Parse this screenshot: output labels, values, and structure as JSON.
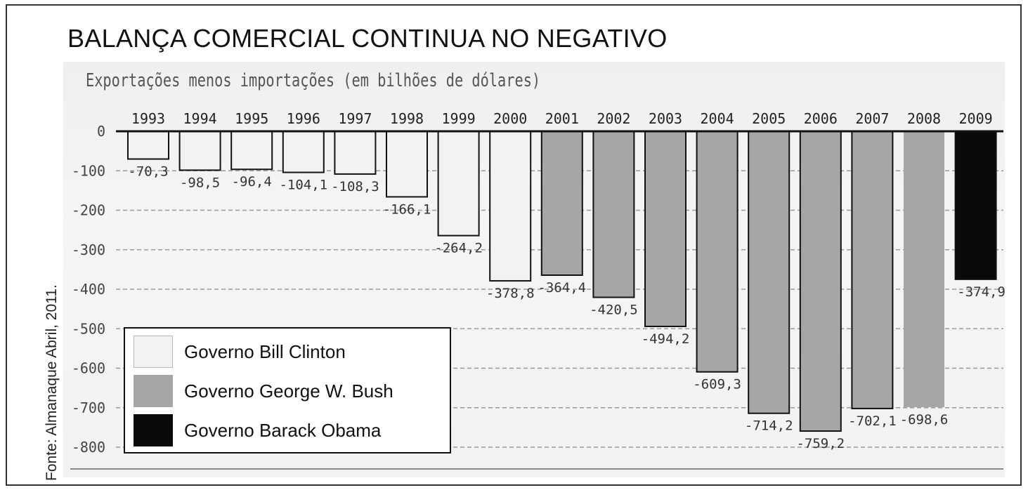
{
  "title": "BALANÇA COMERCIAL CONTINUA NO NEGATIVO",
  "subtitle": "Exportações menos importações (em bilhões de dólares)",
  "source": "Fonte: Almanaque Abril, 2011.",
  "colors": {
    "clinton": "#f2f2f2",
    "bush": "#a6a6a6",
    "obama": "#0a0a0a"
  },
  "legend": [
    {
      "key": "clinton",
      "label": "Governo Bill Clinton"
    },
    {
      "key": "bush",
      "label": "Governo George W. Bush"
    },
    {
      "key": "obama",
      "label": "Governo Barack Obama"
    }
  ],
  "chart_data": {
    "type": "bar",
    "title": "BALANÇA COMERCIAL CONTINUA NO NEGATIVO",
    "subtitle": "Exportações menos importações (em bilhões de dólares)",
    "categories": [
      "1993",
      "1994",
      "1995",
      "1996",
      "1997",
      "1998",
      "1999",
      "2000",
      "2001",
      "2002",
      "2003",
      "2004",
      "2005",
      "2006",
      "2007",
      "2008",
      "2009"
    ],
    "values": [
      -70.3,
      -98.5,
      -96.4,
      -104.1,
      -108.3,
      -166.1,
      -264.2,
      -378.8,
      -364.4,
      -420.5,
      -494.2,
      -609.3,
      -714.2,
      -759.2,
      -702.1,
      -698.6,
      -374.9
    ],
    "value_labels": [
      "-70,3",
      "-98,5",
      "-96,4",
      "-104,1",
      "-108,3",
      "-166,1",
      "-264,2",
      "-378,8",
      "-364,4",
      "-420,5",
      "-494,2",
      "-609,3",
      "-714,2",
      "-759,2",
      "-702,1",
      "-698,6",
      "-374,9"
    ],
    "groups": [
      "clinton",
      "clinton",
      "clinton",
      "clinton",
      "clinton",
      "clinton",
      "clinton",
      "clinton",
      "bush",
      "bush",
      "bush",
      "bush",
      "bush",
      "bush",
      "bush",
      "bush",
      "obama"
    ],
    "yticks": [
      0,
      -100,
      -200,
      -300,
      -400,
      -500,
      -600,
      -700,
      -800
    ],
    "ytick_labels": [
      "0",
      "-100",
      "-200",
      "-300",
      "-400",
      "-500",
      "-600",
      "-700",
      "-800"
    ],
    "ylim": [
      -800,
      0
    ],
    "grid": true,
    "legend_position": "bottom-left"
  }
}
